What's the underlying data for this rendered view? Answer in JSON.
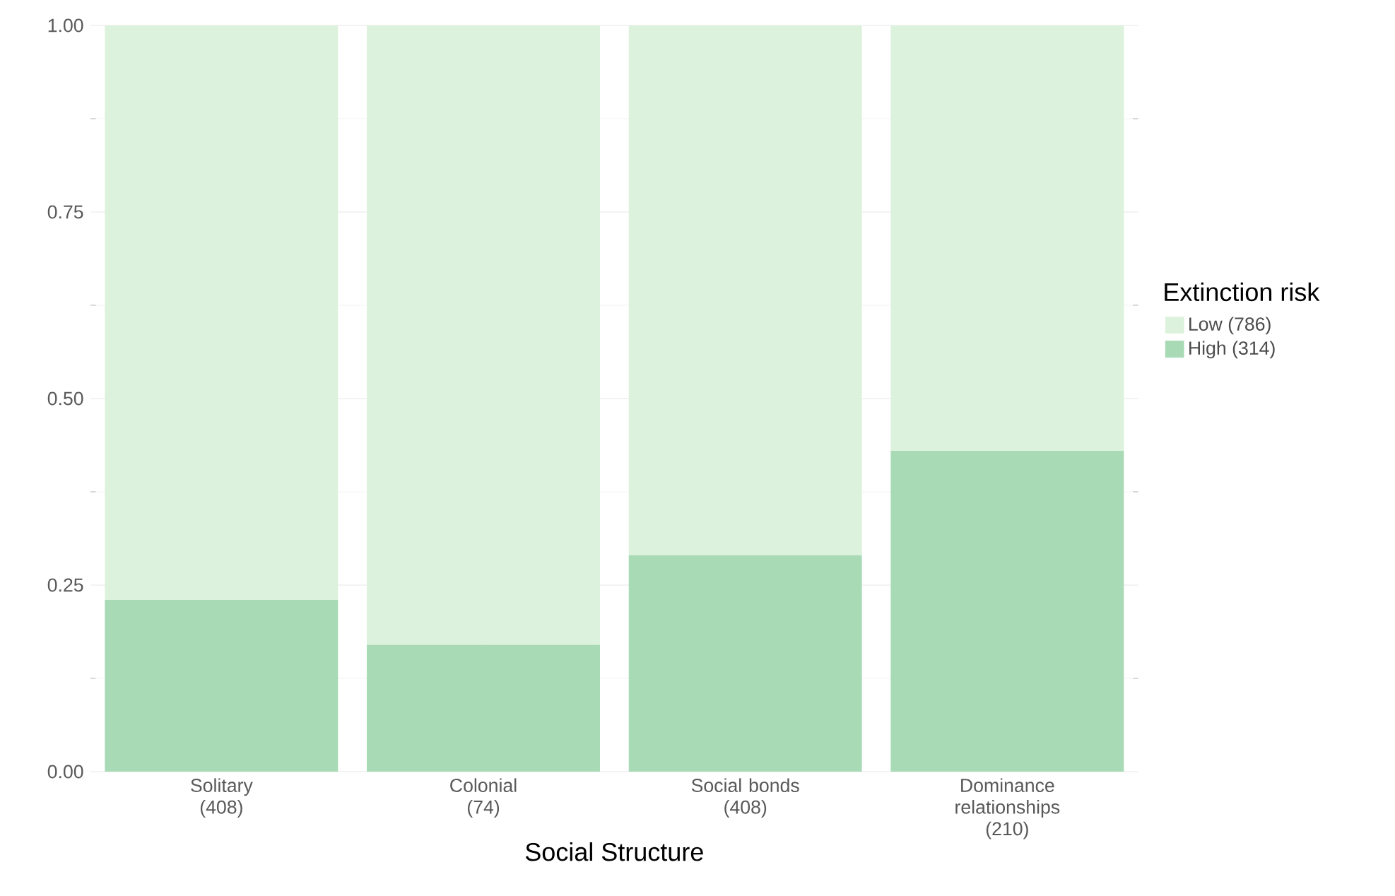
{
  "chart_data": {
    "type": "bar",
    "stacked": true,
    "xlabel": "Social Structure",
    "legend_title": "Extinction risk",
    "categories": [
      "Solitary\n(408)",
      "Colonial\n(74)",
      "Social bonds\n(408)",
      "Dominance relationships\n(210)"
    ],
    "series": [
      {
        "name": "High (314)",
        "color": "#a8dab5",
        "values": [
          0.23,
          0.17,
          0.29,
          0.43
        ]
      },
      {
        "name": "Low (786)",
        "color": "#ddf2dc",
        "values": [
          0.77,
          0.83,
          0.71,
          0.57
        ]
      }
    ],
    "ylim": [
      0,
      1
    ],
    "yticks": [
      {
        "value": 0,
        "label": "0.00"
      },
      {
        "value": 0.25,
        "label": "0.25"
      },
      {
        "value": 0.5,
        "label": "0.50"
      },
      {
        "value": 0.75,
        "label": "0.75"
      },
      {
        "value": 1,
        "label": "1.00"
      }
    ],
    "grid": true,
    "legend": "right"
  }
}
